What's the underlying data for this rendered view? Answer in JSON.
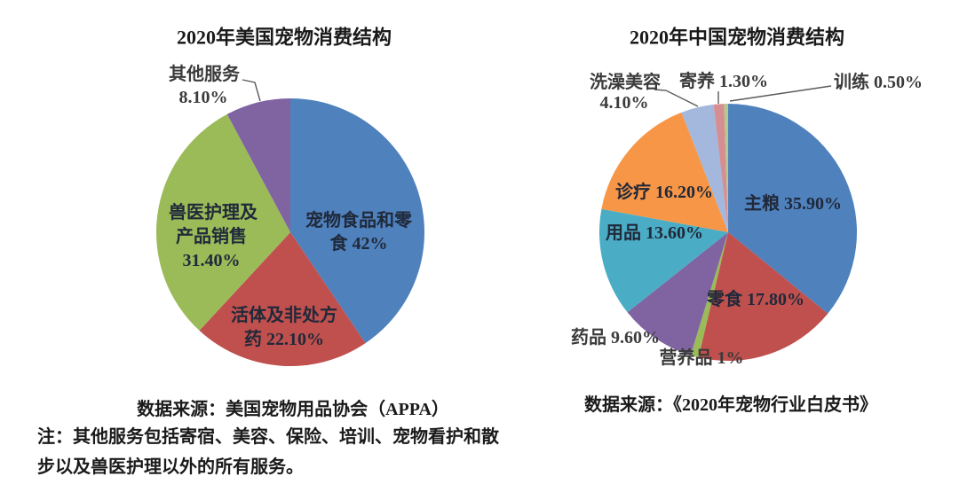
{
  "page": {
    "background": "#ffffff"
  },
  "chart_data": [
    {
      "type": "pie",
      "title": "2020年美国宠物消费结构",
      "source": "数据来源：美国宠物用品协会（APPA）",
      "note_lines": [
        "注：其他服务包括寄宿、美容、保险、培训、宠物看护和散",
        "步以及兽医护理以外的所有服务。"
      ],
      "legend_position": "none",
      "start_angle_deg": 0,
      "direction": "clockwise",
      "slices": [
        {
          "key": "pet-food-and-treats",
          "label": "宠物食品和零食",
          "value": 42,
          "display": "42%",
          "color": "#4F81BD",
          "label_lines": [
            "宠物食品和零",
            "食 42%"
          ]
        },
        {
          "key": "live-animals-otc-medicine",
          "label": "活体及非处方药",
          "value": 22.1,
          "display": "22.10%",
          "color": "#C0504D",
          "label_lines": [
            "活体及非处方",
            "药 22.10%"
          ]
        },
        {
          "key": "vet-care-product-sales",
          "label": "兽医护理及产品销售",
          "value": 31.4,
          "display": "31.40%",
          "color": "#9BBB59",
          "label_lines": [
            "兽医护理及",
            "产品销售",
            "31.40%"
          ]
        },
        {
          "key": "other-services",
          "label": "其他服务",
          "value": 8.1,
          "display": "8.10%",
          "color": "#8064A2",
          "label_lines": [
            "其他服务",
            "8.10%"
          ]
        }
      ]
    },
    {
      "type": "pie",
      "title": "2020年中国宠物消费结构",
      "source": "数据来源：《2020年宠物行业白皮书》",
      "legend_position": "none",
      "start_angle_deg": 0,
      "direction": "clockwise",
      "slices": [
        {
          "key": "staple-food",
          "label": "主粮",
          "value": 35.9,
          "display": "35.90%",
          "color": "#4F81BD",
          "label_lines": [
            "主粮 35.90%"
          ]
        },
        {
          "key": "snacks",
          "label": "零食",
          "value": 17.8,
          "display": "17.80%",
          "color": "#C0504D",
          "label_lines": [
            "零食 17.80%"
          ]
        },
        {
          "key": "nutrition",
          "label": "营养品",
          "value": 1,
          "display": "1%",
          "color": "#9BBB59",
          "label_lines": [
            "营养品 1%"
          ]
        },
        {
          "key": "medicine",
          "label": "药品",
          "value": 9.6,
          "display": "9.60%",
          "color": "#8064A2",
          "label_lines": [
            "药品 9.60%"
          ]
        },
        {
          "key": "supplies",
          "label": "用品",
          "value": 13.6,
          "display": "13.60%",
          "color": "#4BACC6",
          "label_lines": [
            "用品 13.60%"
          ]
        },
        {
          "key": "medical-treatment",
          "label": "诊疗",
          "value": 16.2,
          "display": "16.20%",
          "color": "#F79646",
          "label_lines": [
            "诊疗 16.20%"
          ]
        },
        {
          "key": "grooming",
          "label": "洗澡美容",
          "value": 4.1,
          "display": "4.10%",
          "color": "#A3B8DC",
          "label_lines": [
            "洗澡美容",
            "4.10%"
          ]
        },
        {
          "key": "boarding",
          "label": "寄养",
          "value": 1.3,
          "display": "1.30%",
          "color": "#D58F92",
          "label_lines": [
            "寄养 1.30%"
          ]
        },
        {
          "key": "training",
          "label": "训练",
          "value": 0.5,
          "display": "0.50%",
          "color": "#B3CA8C",
          "label_lines": [
            "训练 0.50%"
          ]
        }
      ]
    }
  ]
}
